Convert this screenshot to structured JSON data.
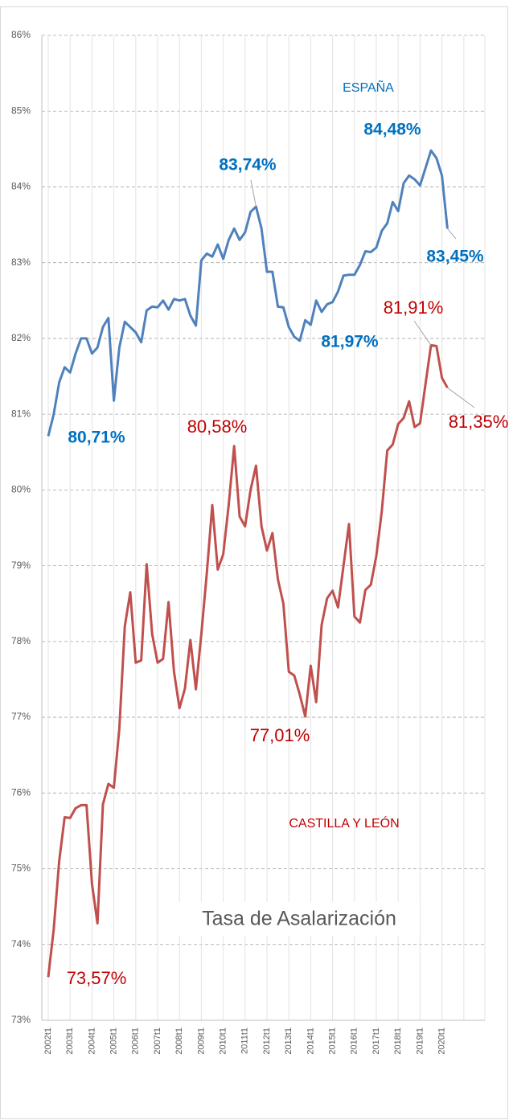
{
  "chart_data": {
    "type": "line",
    "title": "Tasa de Asalarización",
    "categories": [
      "2002t1",
      null,
      null,
      null,
      "2003t1",
      null,
      null,
      null,
      "2004t1",
      null,
      null,
      null,
      "2005t1",
      null,
      null,
      null,
      "2006t1",
      null,
      null,
      null,
      "2007t1",
      null,
      null,
      null,
      "2008t1",
      null,
      null,
      null,
      "2009t1",
      null,
      null,
      null,
      "2010t1",
      null,
      null,
      null,
      "2011t1",
      null,
      null,
      null,
      "2012t1",
      null,
      null,
      null,
      "2013t1",
      null,
      null,
      null,
      "2014t1",
      null,
      null,
      null,
      "2015t1",
      null,
      null,
      null,
      "2016t1",
      null,
      null,
      null,
      "2017t1",
      null,
      null,
      null,
      "2018t1",
      null,
      null,
      null,
      "2019t1",
      null,
      null,
      null,
      "2020t1",
      null
    ],
    "series": [
      {
        "name": "ESPAÑA",
        "color": "#4f81bd",
        "label_color": "#0070c0",
        "values": [
          80.71,
          81.0,
          81.42,
          81.62,
          81.55,
          81.8,
          82.0,
          82.0,
          81.8,
          81.88,
          82.15,
          82.27,
          81.18,
          81.88,
          82.22,
          82.15,
          82.08,
          81.95,
          82.37,
          82.42,
          82.41,
          82.5,
          82.38,
          82.52,
          82.5,
          82.52,
          82.3,
          82.17,
          83.03,
          83.12,
          83.08,
          83.24,
          83.05,
          83.3,
          83.45,
          83.3,
          83.4,
          83.67,
          83.74,
          83.45,
          82.88,
          82.88,
          82.42,
          82.41,
          82.15,
          82.02,
          81.97,
          82.24,
          82.18,
          82.5,
          82.35,
          82.45,
          82.48,
          82.62,
          82.83,
          82.84,
          82.84,
          82.97,
          83.15,
          83.14,
          83.2,
          83.42,
          83.52,
          83.8,
          83.68,
          84.05,
          84.15,
          84.1,
          84.02,
          84.25,
          84.48,
          84.38,
          84.15,
          83.45
        ],
        "value_labels": [
          "80,71%",
          null,
          null,
          null,
          null,
          null,
          null,
          null,
          null,
          null,
          null,
          null,
          null,
          null,
          null,
          null,
          null,
          null,
          null,
          null,
          null,
          null,
          null,
          null,
          null,
          null,
          null,
          null,
          null,
          null,
          null,
          null,
          null,
          null,
          null,
          null,
          null,
          null,
          "83,74%",
          null,
          null,
          null,
          null,
          null,
          null,
          null,
          "81,97%",
          null,
          null,
          null,
          null,
          null,
          null,
          null,
          null,
          null,
          null,
          null,
          null,
          null,
          null,
          null,
          null,
          null,
          null,
          null,
          null,
          null,
          null,
          null,
          "84,48%",
          null,
          null,
          "83,45%"
        ]
      },
      {
        "name": "CASTILLA Y LEÓN",
        "color": "#c0504d",
        "label_color": "#c00000",
        "values": [
          73.57,
          74.2,
          75.1,
          75.68,
          75.67,
          75.8,
          75.84,
          75.84,
          74.8,
          74.28,
          75.85,
          76.12,
          76.07,
          76.85,
          78.2,
          78.65,
          77.72,
          77.75,
          79.02,
          78.1,
          77.72,
          77.77,
          78.52,
          77.6,
          77.12,
          77.38,
          78.02,
          77.37,
          78.1,
          78.9,
          79.8,
          78.95,
          79.15,
          79.8,
          80.58,
          79.65,
          79.52,
          80.0,
          80.32,
          79.52,
          79.2,
          79.43,
          78.82,
          78.5,
          77.6,
          77.55,
          77.3,
          77.01,
          77.68,
          77.2,
          78.22,
          78.57,
          78.67,
          78.45,
          79.0,
          79.55,
          78.33,
          78.25,
          78.68,
          78.75,
          79.13,
          79.72,
          80.52,
          80.6,
          80.87,
          80.95,
          81.17,
          80.83,
          80.88,
          81.4,
          81.91,
          81.9,
          81.48,
          81.35
        ],
        "value_labels": [
          "73,57%",
          null,
          null,
          null,
          null,
          null,
          null,
          null,
          null,
          null,
          null,
          null,
          null,
          null,
          null,
          null,
          null,
          null,
          null,
          null,
          null,
          null,
          null,
          null,
          null,
          null,
          null,
          null,
          null,
          null,
          null,
          null,
          null,
          null,
          "80,58%",
          null,
          null,
          null,
          null,
          null,
          null,
          null,
          null,
          null,
          null,
          null,
          null,
          "77,01%",
          null,
          null,
          null,
          null,
          null,
          null,
          null,
          null,
          null,
          null,
          null,
          null,
          null,
          null,
          null,
          null,
          null,
          null,
          null,
          null,
          null,
          null,
          "81,91%",
          null,
          null,
          "81,35%"
        ]
      }
    ],
    "ylim": [
      73,
      86
    ],
    "yticks": [
      {
        "value": 73,
        "label": "73%"
      },
      {
        "value": 74,
        "label": "74%"
      },
      {
        "value": 75,
        "label": "75%"
      },
      {
        "value": 76,
        "label": "76%"
      },
      {
        "value": 77,
        "label": "77%"
      },
      {
        "value": 78,
        "label": "78%"
      },
      {
        "value": 79,
        "label": "79%"
      },
      {
        "value": 80,
        "label": "80%"
      },
      {
        "value": 81,
        "label": "81%"
      },
      {
        "value": 82,
        "label": "82%"
      },
      {
        "value": 83,
        "label": "83%"
      },
      {
        "value": 84,
        "label": "84%"
      },
      {
        "value": 85,
        "label": "85%"
      },
      {
        "value": 86,
        "label": "86%"
      }
    ],
    "grid": true
  }
}
